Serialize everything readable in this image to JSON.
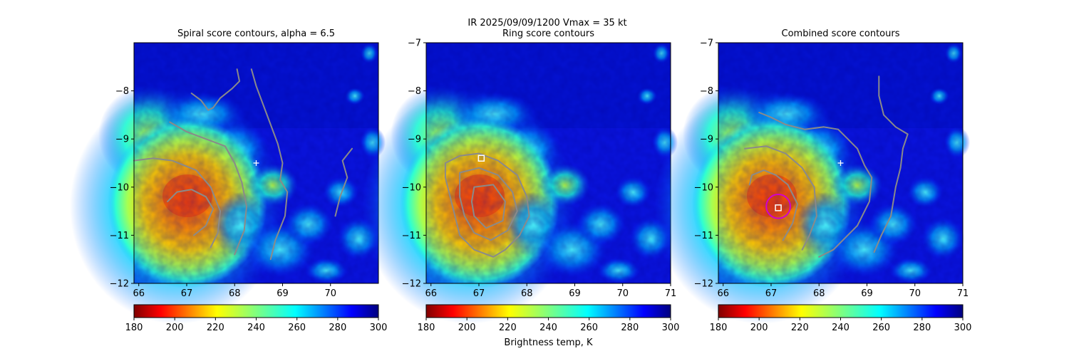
{
  "suptitle_line1": "IR  2025/09/09/1200    Vmax = 35 kt",
  "colorbar_label": "Brightness temp, K",
  "chart_data": [
    {
      "type": "heatmap",
      "title": "Spiral score contours, alpha =  6.5",
      "xlim": [
        65.9,
        71.0
      ],
      "ylim": [
        -12.0,
        -7.0
      ],
      "xticks": [
        66,
        67,
        68,
        69,
        70
      ],
      "yticks": [
        -8,
        -9,
        -10,
        -11,
        -12
      ],
      "colorbar": {
        "cmap": "jet reversed",
        "range": [
          180,
          300
        ],
        "ticks": [
          180,
          200,
          220,
          240,
          260,
          280,
          300
        ]
      },
      "markers": [
        {
          "kind": "plus",
          "x": 68.45,
          "y": -9.5
        }
      ],
      "contours": [
        [
          [
            66.6,
            -10.3
          ],
          [
            66.8,
            -10.1
          ],
          [
            67.1,
            -10.05
          ],
          [
            67.4,
            -10.2
          ],
          [
            67.55,
            -10.45
          ],
          [
            67.4,
            -10.8
          ],
          [
            67.15,
            -11.0
          ]
        ],
        [
          [
            65.9,
            -9.45
          ],
          [
            66.3,
            -9.4
          ],
          [
            66.7,
            -9.45
          ],
          [
            67.2,
            -9.65
          ],
          [
            67.5,
            -10.0
          ],
          [
            67.7,
            -10.5
          ],
          [
            67.65,
            -10.95
          ],
          [
            67.5,
            -11.25
          ]
        ],
        [
          [
            66.65,
            -8.65
          ],
          [
            67.0,
            -8.85
          ],
          [
            67.4,
            -9.0
          ],
          [
            67.8,
            -9.15
          ],
          [
            68.0,
            -9.5
          ],
          [
            68.15,
            -9.9
          ],
          [
            68.25,
            -10.4
          ],
          [
            68.2,
            -10.9
          ],
          [
            68.0,
            -11.4
          ]
        ],
        [
          [
            67.1,
            -8.05
          ],
          [
            67.3,
            -8.2
          ],
          [
            67.45,
            -8.4
          ],
          [
            67.55,
            -8.35
          ],
          [
            67.7,
            -8.15
          ],
          [
            67.95,
            -7.95
          ],
          [
            68.1,
            -7.8
          ],
          [
            68.05,
            -7.55
          ]
        ],
        [
          [
            68.35,
            -7.55
          ],
          [
            68.45,
            -7.9
          ],
          [
            68.6,
            -8.3
          ],
          [
            68.75,
            -8.7
          ],
          [
            68.9,
            -9.1
          ],
          [
            69.0,
            -9.5
          ],
          [
            68.95,
            -9.85
          ],
          [
            69.1,
            -10.1
          ],
          [
            69.05,
            -10.6
          ],
          [
            68.85,
            -11.1
          ],
          [
            68.75,
            -11.5
          ]
        ],
        [
          [
            70.45,
            -9.2
          ],
          [
            70.25,
            -9.45
          ],
          [
            70.35,
            -9.8
          ],
          [
            70.2,
            -10.2
          ],
          [
            70.1,
            -10.6
          ]
        ]
      ]
    },
    {
      "type": "heatmap",
      "title": "Ring score contours",
      "xlim": [
        65.9,
        71.0
      ],
      "ylim": [
        -12.0,
        -7.0
      ],
      "xticks": [
        66,
        67,
        68,
        69,
        70,
        71
      ],
      "yticks": [
        -7,
        -8,
        -9,
        -10,
        -11,
        -12
      ],
      "colorbar": {
        "cmap": "jet reversed",
        "range": [
          180,
          300
        ],
        "ticks": [
          180,
          200,
          220,
          240,
          260,
          280,
          300
        ]
      },
      "markers": [
        {
          "kind": "square",
          "x": 67.05,
          "y": -9.4
        }
      ],
      "contours": [
        [
          [
            66.3,
            -9.5
          ],
          [
            66.6,
            -9.35
          ],
          [
            67.0,
            -9.3
          ],
          [
            67.4,
            -9.45
          ],
          [
            67.8,
            -9.75
          ],
          [
            68.0,
            -10.2
          ],
          [
            68.05,
            -10.6
          ],
          [
            67.85,
            -11.0
          ],
          [
            67.55,
            -11.3
          ],
          [
            67.3,
            -11.45
          ],
          [
            66.9,
            -11.3
          ],
          [
            66.6,
            -11.0
          ],
          [
            66.5,
            -10.6
          ],
          [
            66.4,
            -10.2
          ],
          [
            66.3,
            -9.8
          ],
          [
            66.3,
            -9.5
          ]
        ],
        [
          [
            66.6,
            -9.7
          ],
          [
            67.0,
            -9.6
          ],
          [
            67.4,
            -9.75
          ],
          [
            67.7,
            -10.1
          ],
          [
            67.8,
            -10.5
          ],
          [
            67.6,
            -10.9
          ],
          [
            67.25,
            -11.1
          ],
          [
            66.9,
            -10.95
          ],
          [
            66.7,
            -10.6
          ],
          [
            66.6,
            -10.2
          ],
          [
            66.6,
            -9.7
          ]
        ],
        [
          [
            66.9,
            -10.0
          ],
          [
            67.3,
            -9.95
          ],
          [
            67.55,
            -10.3
          ],
          [
            67.5,
            -10.7
          ],
          [
            67.15,
            -10.85
          ],
          [
            66.9,
            -10.6
          ],
          [
            66.85,
            -10.3
          ],
          [
            66.9,
            -10.0
          ]
        ]
      ]
    },
    {
      "type": "heatmap",
      "title": "Combined score contours",
      "xlim": [
        65.9,
        71.0
      ],
      "ylim": [
        -12.0,
        -7.0
      ],
      "xticks": [
        66,
        67,
        68,
        69,
        70,
        71
      ],
      "yticks": [
        -7,
        -8,
        -9,
        -10,
        -11,
        -12
      ],
      "colorbar": {
        "cmap": "jet reversed",
        "range": [
          180,
          300
        ],
        "ticks": [
          180,
          200,
          220,
          240,
          260,
          280,
          300
        ]
      },
      "markers": [
        {
          "kind": "plus",
          "x": 68.45,
          "y": -9.5
        },
        {
          "kind": "square",
          "x": 67.15,
          "y": -10.43
        },
        {
          "kind": "circle",
          "x": 67.15,
          "y": -10.4,
          "radius": 0.25
        }
      ],
      "contours": [
        [
          [
            66.55,
            -9.95
          ],
          [
            66.6,
            -9.75
          ],
          [
            66.85,
            -9.65
          ],
          [
            67.1,
            -9.75
          ],
          [
            67.35,
            -9.95
          ],
          [
            67.55,
            -10.35
          ],
          [
            67.45,
            -10.75
          ],
          [
            67.25,
            -11.1
          ]
        ],
        [
          [
            66.45,
            -9.2
          ],
          [
            66.9,
            -9.15
          ],
          [
            67.3,
            -9.3
          ],
          [
            67.65,
            -9.6
          ],
          [
            67.9,
            -10.0
          ],
          [
            67.95,
            -10.6
          ],
          [
            67.8,
            -11.0
          ],
          [
            67.65,
            -11.3
          ]
        ],
        [
          [
            66.75,
            -8.45
          ],
          [
            67.0,
            -8.55
          ],
          [
            67.3,
            -8.7
          ],
          [
            67.7,
            -8.8
          ],
          [
            68.1,
            -8.75
          ],
          [
            68.4,
            -8.8
          ],
          [
            68.6,
            -9.0
          ],
          [
            68.8,
            -9.2
          ],
          [
            68.95,
            -9.55
          ],
          [
            69.1,
            -9.8
          ],
          [
            69.05,
            -10.3
          ],
          [
            68.8,
            -10.8
          ],
          [
            68.3,
            -11.3
          ],
          [
            68.0,
            -11.45
          ]
        ],
        [
          [
            69.25,
            -7.7
          ],
          [
            69.25,
            -8.1
          ],
          [
            69.35,
            -8.5
          ],
          [
            69.6,
            -8.75
          ],
          [
            69.85,
            -8.9
          ],
          [
            69.75,
            -9.2
          ],
          [
            69.7,
            -9.6
          ],
          [
            69.6,
            -10.0
          ],
          [
            69.5,
            -10.6
          ],
          [
            69.3,
            -11.0
          ],
          [
            69.15,
            -11.35
          ]
        ]
      ]
    }
  ]
}
